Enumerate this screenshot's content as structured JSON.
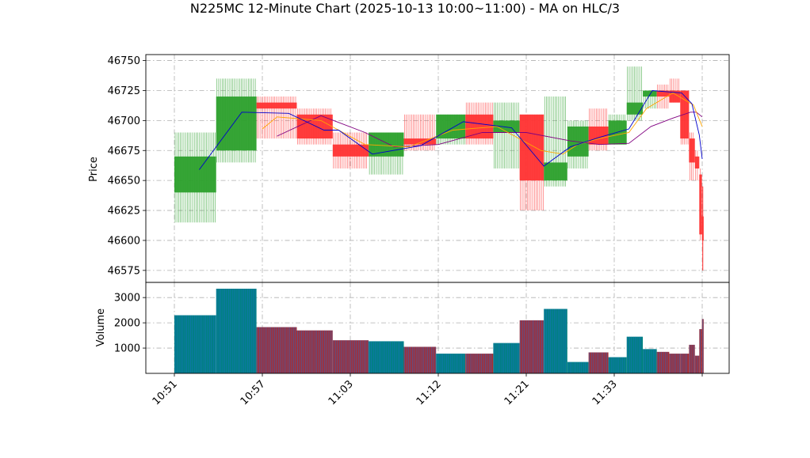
{
  "chart_data": {
    "type": "candlestick",
    "title": "N225MC 12-Minute Chart (2025-10-13 10:00~11:00) - MA on HLC/3",
    "price_panel": {
      "ylabel": "Price",
      "ylim": [
        46565,
        46755
      ],
      "yticks": [
        46575,
        46600,
        46625,
        46650,
        46675,
        46700,
        46725,
        46750
      ],
      "grid": true
    },
    "volume_panel": {
      "ylabel": "Volume",
      "ylim": [
        0,
        3600
      ],
      "yticks": [
        1000,
        2000,
        3000
      ],
      "grid": true
    },
    "x_axis": {
      "tick_labels": [
        {
          "t": 0,
          "label": "10:51"
        },
        {
          "t": 6,
          "label": "10:57"
        },
        {
          "t": 12,
          "label": "11:03"
        },
        {
          "t": 18,
          "label": "11:12"
        },
        {
          "t": 24,
          "label": "11:21"
        },
        {
          "t": 30,
          "label": "11:33"
        }
      ],
      "tmax": 36
    },
    "colors": {
      "up": "#2ca02c",
      "down": "#ff3333",
      "ma_short": "#0000cc",
      "ma_mid": "#ffa500",
      "ma_long": "#800080",
      "vol_up": "#008080",
      "vol_down": "#a0303a",
      "vol_edge": "#1f6fd0"
    },
    "candles": [
      {
        "t0": 0.0,
        "t1": 2.85,
        "open": 46640,
        "high": 46690,
        "low": 46615,
        "close": 46670,
        "volume": 2300
      },
      {
        "t0": 2.85,
        "t1": 5.6,
        "open": 46675,
        "high": 46735,
        "low": 46665,
        "close": 46720,
        "volume": 3350
      },
      {
        "t0": 5.6,
        "t1": 8.35,
        "open": 46715,
        "high": 46720,
        "low": 46685,
        "close": 46710,
        "volume": 1830
      },
      {
        "t0": 8.35,
        "t1": 10.8,
        "open": 46705,
        "high": 46710,
        "low": 46680,
        "close": 46685,
        "volume": 1700
      },
      {
        "t0": 10.8,
        "t1": 13.25,
        "open": 46680,
        "high": 46690,
        "low": 46660,
        "close": 46670,
        "volume": 1310
      },
      {
        "t0": 13.25,
        "t1": 15.65,
        "open": 46670,
        "high": 46690,
        "low": 46655,
        "close": 46690,
        "volume": 1270
      },
      {
        "t0": 15.65,
        "t1": 17.85,
        "open": 46685,
        "high": 46705,
        "low": 46675,
        "close": 46680,
        "volume": 1050
      },
      {
        "t0": 17.85,
        "t1": 19.85,
        "open": 46685,
        "high": 46705,
        "low": 46680,
        "close": 46705,
        "volume": 780
      },
      {
        "t0": 19.85,
        "t1": 21.75,
        "open": 46705,
        "high": 46715,
        "low": 46680,
        "close": 46685,
        "volume": 780
      },
      {
        "t0": 21.75,
        "t1": 23.55,
        "open": 46690,
        "high": 46715,
        "low": 46660,
        "close": 46700,
        "volume": 1200
      },
      {
        "t0": 23.55,
        "t1": 25.2,
        "open": 46705,
        "high": 46705,
        "low": 46625,
        "close": 46650,
        "volume": 2100
      },
      {
        "t0": 25.2,
        "t1": 26.8,
        "open": 46650,
        "high": 46720,
        "low": 46645,
        "close": 46665,
        "volume": 2550
      },
      {
        "t0": 26.8,
        "t1": 28.25,
        "open": 46670,
        "high": 46700,
        "low": 46660,
        "close": 46695,
        "volume": 450
      },
      {
        "t0": 28.25,
        "t1": 29.6,
        "open": 46695,
        "high": 46710,
        "low": 46675,
        "close": 46680,
        "volume": 830
      },
      {
        "t0": 29.6,
        "t1": 30.85,
        "open": 46680,
        "high": 46705,
        "low": 46680,
        "close": 46700,
        "volume": 640
      },
      {
        "t0": 30.85,
        "t1": 31.95,
        "open": 46705,
        "high": 46745,
        "low": 46700,
        "close": 46715,
        "volume": 1450
      },
      {
        "t0": 31.95,
        "t1": 32.9,
        "open": 46720,
        "high": 46725,
        "low": 46710,
        "close": 46725,
        "volume": 960
      },
      {
        "t0": 32.9,
        "t1": 33.75,
        "open": 46725,
        "high": 46730,
        "low": 46710,
        "close": 46720,
        "volume": 850
      },
      {
        "t0": 33.75,
        "t1": 34.5,
        "open": 46725,
        "high": 46735,
        "low": 46715,
        "close": 46715,
        "volume": 780
      },
      {
        "t0": 34.5,
        "t1": 35.1,
        "open": 46725,
        "high": 46725,
        "low": 46680,
        "close": 46685,
        "volume": 780
      },
      {
        "t0": 35.1,
        "t1": 35.5,
        "open": 46685,
        "high": 46690,
        "low": 46650,
        "close": 46665,
        "volume": 1130
      },
      {
        "t0": 35.5,
        "t1": 35.8,
        "open": 46670,
        "high": 46675,
        "low": 46650,
        "close": 46660,
        "volume": 700
      },
      {
        "t0": 35.8,
        "t1": 35.98,
        "open": 46655,
        "high": 46660,
        "low": 46600,
        "close": 46605,
        "volume": 1750
      },
      {
        "t0": 35.98,
        "t1": 36.1,
        "open": 46620,
        "high": 46645,
        "low": 46575,
        "close": 46600,
        "volume": 2150
      }
    ],
    "ma_short": [
      [
        1.7,
        46659
      ],
      [
        4.6,
        46707
      ],
      [
        7.8,
        46706
      ],
      [
        10.2,
        46692
      ],
      [
        11.2,
        46692
      ],
      [
        13.5,
        46672
      ],
      [
        16.8,
        46679
      ],
      [
        19.7,
        46699
      ],
      [
        23.0,
        46694
      ],
      [
        25.2,
        46662
      ],
      [
        27.0,
        46678
      ],
      [
        29.0,
        46686
      ],
      [
        31.0,
        46693
      ],
      [
        32.6,
        46725
      ],
      [
        34.6,
        46723
      ],
      [
        35.3,
        46714
      ],
      [
        35.8,
        46688
      ],
      [
        36.0,
        46668
      ]
    ],
    "ma_mid": [
      [
        6.0,
        46693
      ],
      [
        7.0,
        46703
      ],
      [
        10.0,
        46700
      ],
      [
        13.0,
        46680
      ],
      [
        16.0,
        46678
      ],
      [
        19.0,
        46692
      ],
      [
        22.0,
        46695
      ],
      [
        25.0,
        46675
      ],
      [
        26.5,
        46672
      ],
      [
        27.5,
        46680
      ],
      [
        29.0,
        46685
      ],
      [
        31.0,
        46690
      ],
      [
        32.2,
        46710
      ],
      [
        34.0,
        46723
      ],
      [
        35.4,
        46713
      ],
      [
        36.0,
        46695
      ]
    ],
    "ma_long": [
      [
        7.0,
        46687
      ],
      [
        10.0,
        46704
      ],
      [
        13.0,
        46690
      ],
      [
        15.0,
        46678
      ],
      [
        18.0,
        46680
      ],
      [
        21.0,
        46690
      ],
      [
        24.0,
        46690
      ],
      [
        27.0,
        46683
      ],
      [
        29.0,
        46680
      ],
      [
        31.0,
        46681
      ],
      [
        32.5,
        46695
      ],
      [
        34.0,
        46702
      ],
      [
        35.2,
        46707
      ],
      [
        35.6,
        46707
      ],
      [
        36.0,
        46703
      ]
    ]
  }
}
